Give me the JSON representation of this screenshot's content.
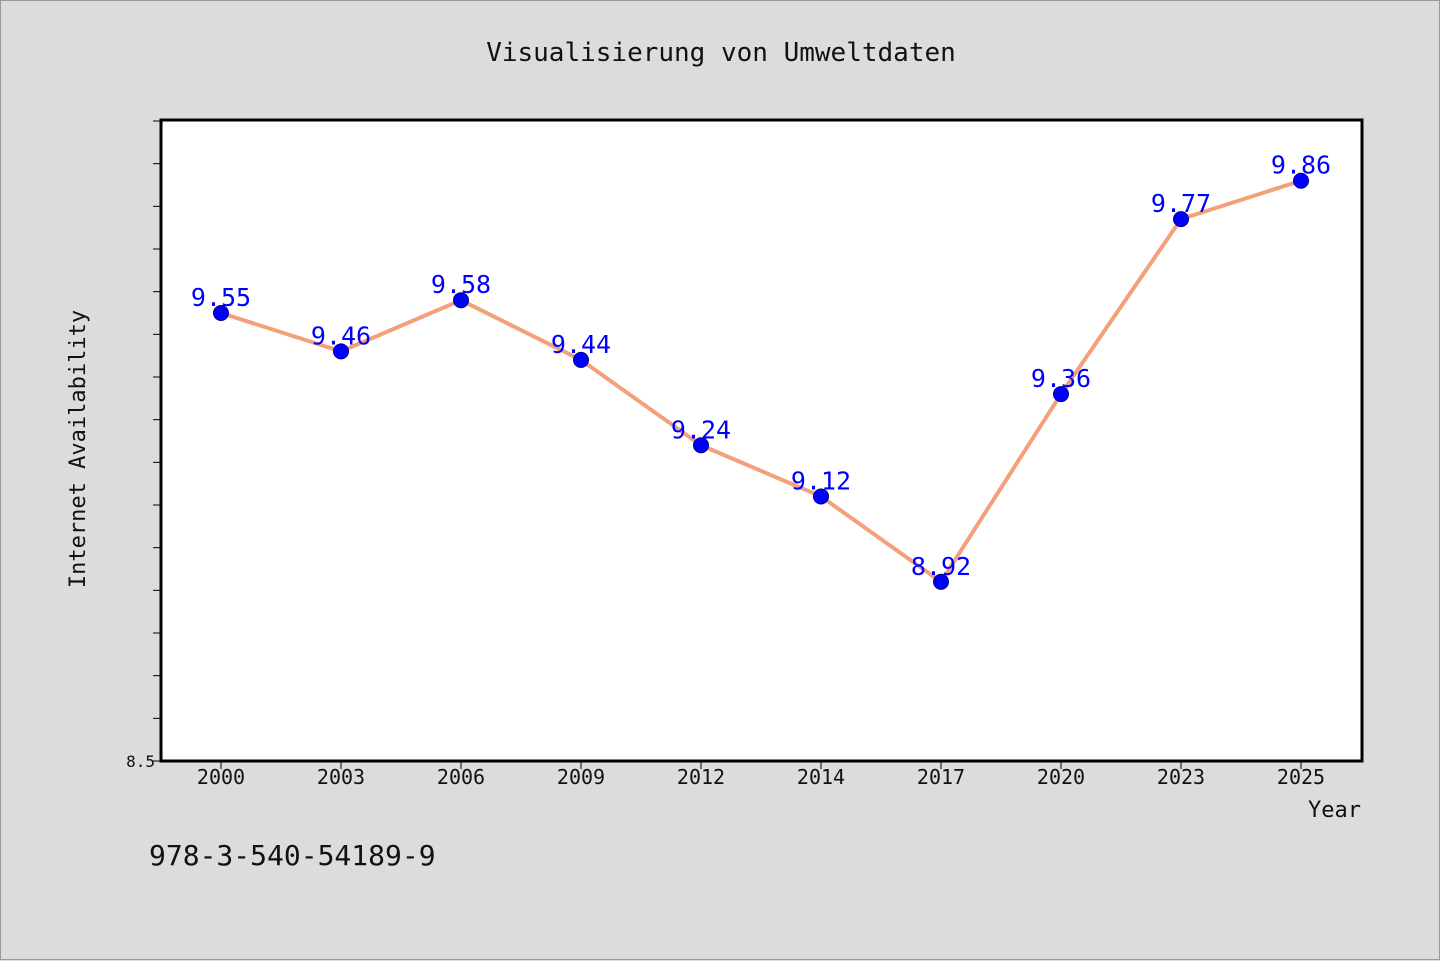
{
  "colors": {
    "background": "#dcdcdc",
    "plot_background": "#ffffff",
    "line": "#f4a07a",
    "marker": "#0000ff",
    "data_label": "#0000ff"
  },
  "footer_text": "978-3-540-54189-9",
  "chart_data": {
    "type": "line",
    "title": "Visualisierung von Umweltdaten",
    "xlabel": "Year",
    "ylabel": "Internet Availability",
    "categories": [
      "2000",
      "2003",
      "2006",
      "2009",
      "2012",
      "2014",
      "2017",
      "2020",
      "2023",
      "2025"
    ],
    "series": [
      {
        "values": [
          9.55,
          9.46,
          9.58,
          9.44,
          9.24,
          9.12,
          8.92,
          9.36,
          9.77,
          9.86
        ],
        "labels": [
          "9.55",
          "9.46",
          "9.58",
          "9.44",
          "9.24",
          "9.12",
          "8.92",
          "9.36",
          "9.77",
          "9.86"
        ]
      }
    ],
    "ylim": [
      8.5,
      10.0
    ],
    "yticks": [
      {
        "value": 8.5,
        "label": "8.5"
      }
    ],
    "y_minor_step": 0.1,
    "grid": false,
    "legend": "none"
  }
}
